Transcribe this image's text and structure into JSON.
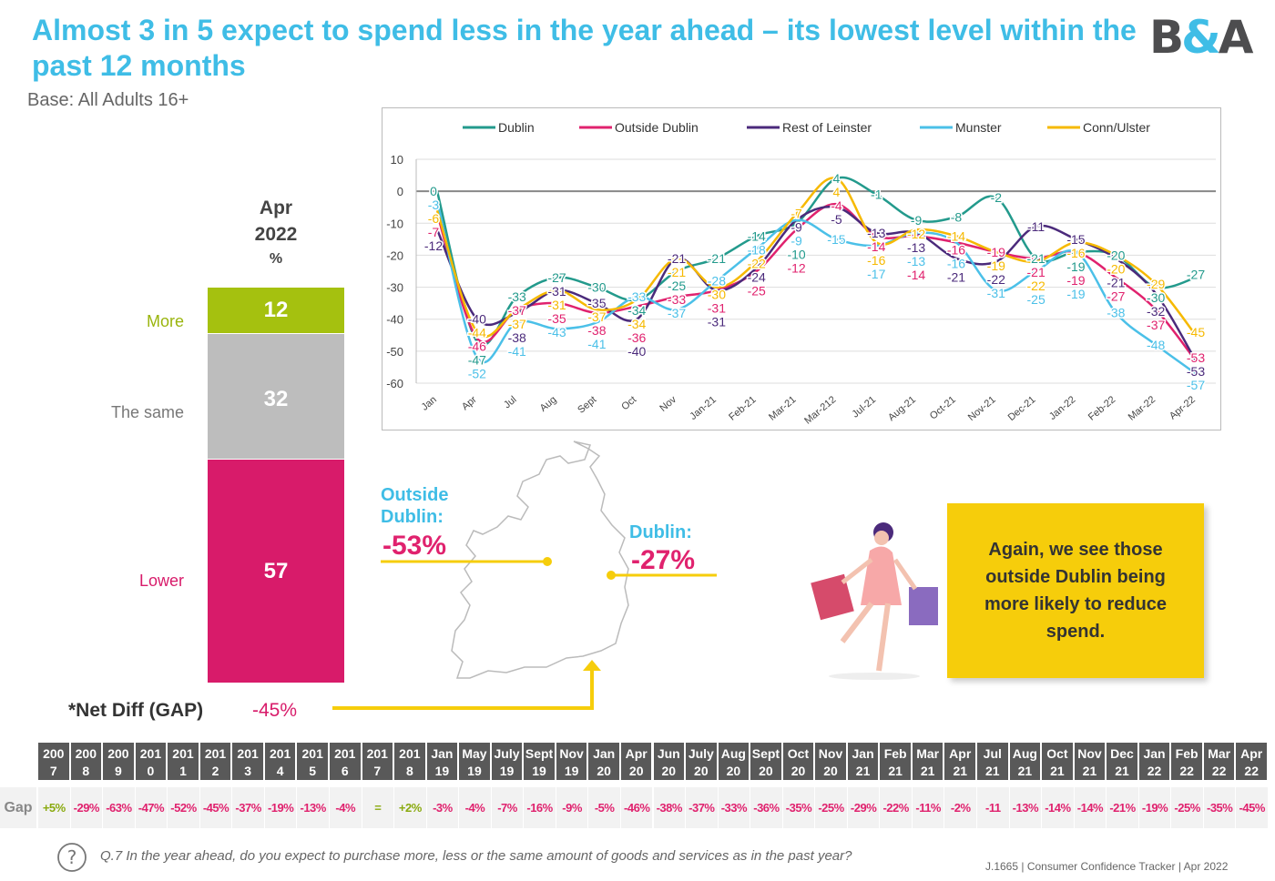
{
  "header": {
    "title": "Almost 3 in 5 expect to spend less in the year ahead – its lowest level within the past 12 months",
    "base": "Base: All Adults 16+",
    "logo": "B&A"
  },
  "stacked_bar": {
    "heading_line1": "Apr",
    "heading_line2": "2022",
    "heading_unit": "%",
    "segments": [
      {
        "label": "More",
        "value": 12,
        "color": "#a5c10f"
      },
      {
        "label": "The same",
        "value": 32,
        "color": "#bdbdbd"
      },
      {
        "label": "Lower",
        "value": 57,
        "color": "#d81b6a"
      }
    ],
    "net_diff_label": "*Net Diff (GAP)",
    "net_diff_value": "-45%"
  },
  "map": {
    "outside_label": "Outside Dublin:",
    "outside_value": "-53%",
    "dublin_label": "Dublin:",
    "dublin_value": "-27%"
  },
  "callout": "Again, we see those outside Dublin being more likely to reduce spend.",
  "chart_data": {
    "type": "line",
    "ylim": [
      -60,
      10
    ],
    "yticks": [
      10,
      0,
      -10,
      -20,
      -30,
      -40,
      -50,
      -60
    ],
    "grid": true,
    "legend": "top",
    "categories": [
      "Jan",
      "Apr",
      "Jul",
      "Aug",
      "Sept",
      "Oct",
      "Nov",
      "Jan-21",
      "Feb-21",
      "Mar-21",
      "Mar-212",
      "Jul-21",
      "Aug-21",
      "Oct-21",
      "Nov-21",
      "Dec-21",
      "Jan-22",
      "Feb-22",
      "Mar-22",
      "Apr-22"
    ],
    "series": [
      {
        "name": "Dublin",
        "color": "#239a8c",
        "values": [
          0,
          -47,
          -33,
          -27,
          -30,
          -34,
          -25,
          -21,
          -14,
          -10,
          4,
          -1,
          -9,
          -8,
          -2,
          -21,
          -19,
          -20,
          -30,
          -27
        ]
      },
      {
        "name": "Outside Dublin",
        "color": "#e0226e",
        "values": [
          -7,
          -46,
          -37,
          -35,
          -38,
          -36,
          -33,
          -31,
          -25,
          -12,
          -4,
          -14,
          -14,
          -16,
          -19,
          -21,
          -19,
          -27,
          -37,
          -53
        ]
      },
      {
        "name": "Rest of Leinster",
        "color": "#4b2a7b",
        "values": [
          -12,
          -40,
          -38,
          -31,
          -35,
          -40,
          -21,
          -31,
          -24,
          -9,
          -5,
          -13,
          -13,
          -21,
          -22,
          -11,
          -15,
          -21,
          -32,
          -53
        ]
      },
      {
        "name": "Munster",
        "color": "#4bc0e8",
        "values": [
          -3,
          -52,
          -41,
          -43,
          -41,
          -33,
          -37,
          -28,
          -18,
          -9,
          -15,
          -17,
          -13,
          -16,
          -31,
          -25,
          -19,
          -38,
          -48,
          -57
        ]
      },
      {
        "name": "Conn/Ulster",
        "color": "#f6b900",
        "values": [
          -6,
          -44,
          -37,
          -31,
          -37,
          -34,
          -21,
          -30,
          -22,
          -7,
          4,
          -16,
          -12,
          -14,
          -19,
          -22,
          -16,
          -20,
          -29,
          -45
        ]
      }
    ]
  },
  "gap_table": {
    "row_label": "Gap",
    "columns": [
      [
        "200",
        "7"
      ],
      [
        "200",
        "8"
      ],
      [
        "200",
        "9"
      ],
      [
        "201",
        "0"
      ],
      [
        "201",
        "1"
      ],
      [
        "201",
        "2"
      ],
      [
        "201",
        "3"
      ],
      [
        "201",
        "4"
      ],
      [
        "201",
        "5"
      ],
      [
        "201",
        "6"
      ],
      [
        "201",
        "7"
      ],
      [
        "201",
        "8"
      ],
      [
        "Jan",
        "19"
      ],
      [
        "May",
        "19"
      ],
      [
        "July",
        "19"
      ],
      [
        "Sept",
        "19"
      ],
      [
        "Nov",
        "19"
      ],
      [
        "Jan",
        "20"
      ],
      [
        "Apr",
        "20"
      ],
      [
        "Jun",
        "20"
      ],
      [
        "July",
        "20"
      ],
      [
        "Aug",
        "20"
      ],
      [
        "Sept",
        "20"
      ],
      [
        "Oct",
        "20"
      ],
      [
        "Nov",
        "20"
      ],
      [
        "Jan",
        "21"
      ],
      [
        "Feb",
        "21"
      ],
      [
        "Mar",
        "21"
      ],
      [
        "Apr",
        "21"
      ],
      [
        "Jul",
        "21"
      ],
      [
        "Aug",
        "21"
      ],
      [
        "Oct",
        "21"
      ],
      [
        "Nov",
        "21"
      ],
      [
        "Dec",
        "21"
      ],
      [
        "Jan",
        "22"
      ],
      [
        "Feb",
        "22"
      ],
      [
        "Mar",
        "22"
      ],
      [
        "Apr",
        "22"
      ]
    ],
    "values": [
      "+5%",
      "-29%",
      "-63%",
      "-47%",
      "-52%",
      "-45%",
      "-37%",
      "-19%",
      "-13%",
      "-4%",
      "=",
      "+2%",
      "-3%",
      "-4%",
      "-7%",
      "-16%",
      "-9%",
      "-5%",
      "-46%",
      "-38%",
      "-37%",
      "-33%",
      "-36%",
      "-35%",
      "-25%",
      "-29%",
      "-22%",
      "-11%",
      "-2%",
      "-11",
      "-13%",
      "-14%",
      "-14%",
      "-21%",
      "-19%",
      "-25%",
      "-35%",
      "-45%"
    ]
  },
  "footer": {
    "question": "Q.7 In the year ahead, do you expect to purchase more, less or the same amount of goods and services as in the past year?",
    "source": "J.1665  | Consumer Confidence Tracker |  Apr 2022"
  }
}
